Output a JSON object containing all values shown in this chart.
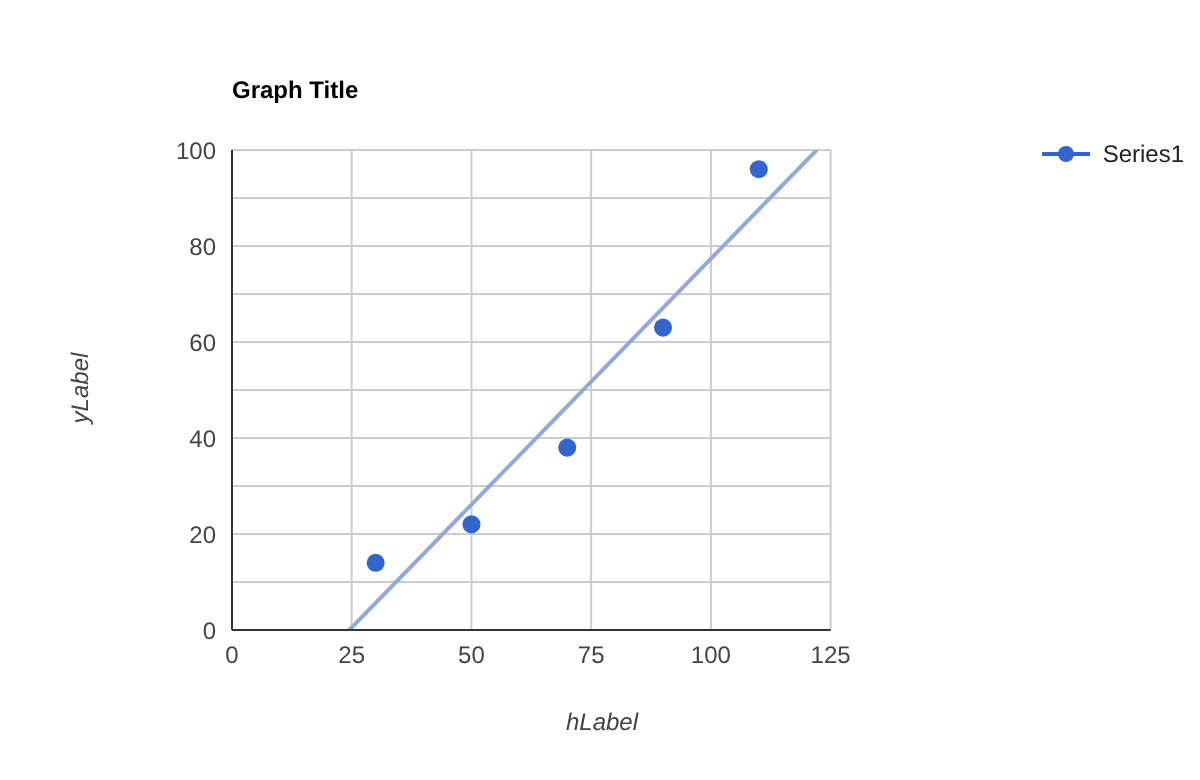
{
  "chart_data": {
    "type": "scatter",
    "title": "Graph Title",
    "xlabel": "hLabel",
    "ylabel": "yLabel",
    "series": [
      {
        "name": "Series1",
        "color": "#3366cc",
        "x": [
          30,
          50,
          70,
          90,
          110
        ],
        "values": [
          14,
          22,
          38,
          63,
          96
        ]
      },
      {
        "type": "line",
        "color": "#93a9d8",
        "x": [
          24.5,
          122.1
        ],
        "values": [
          0,
          100
        ],
        "marker": "none"
      }
    ],
    "xlim": [
      0,
      125
    ],
    "xticks": [
      0,
      25,
      50,
      75,
      100,
      125
    ],
    "ylim": [
      0,
      100
    ],
    "yticks": [
      0,
      {
        "value": 10,
        "label": null
      },
      20,
      {
        "value": 30,
        "label": null
      },
      40,
      {
        "value": 50,
        "label": null
      },
      60,
      {
        "value": 70,
        "label": null
      },
      80,
      {
        "value": 90,
        "label": null
      },
      100
    ],
    "grid": true,
    "legend": "right",
    "marker": "circle",
    "line_style": "solid"
  }
}
